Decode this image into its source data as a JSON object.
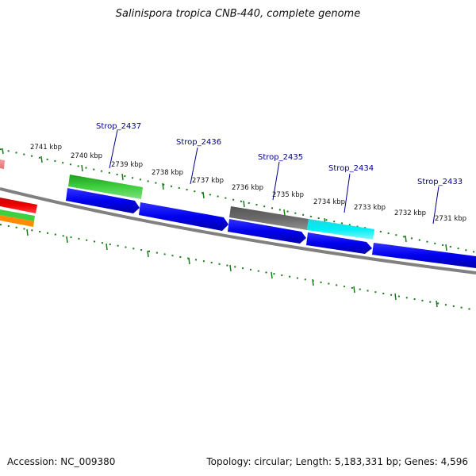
{
  "title": "Salinispora tropica CNB-440, complete genome",
  "accession": "Accession: NC_009380",
  "summary": "Topology: circular; Length: 5,183,331 bp; Genes: 4,596",
  "ticks": [
    "2741 kbp",
    "2740 kbp",
    "2739 kbp",
    "2738 kbp",
    "2737 kbp",
    "2736 kbp",
    "2735 kbp",
    "2734 kbp",
    "2733 kbp",
    "2732 kbp",
    "2731 kbp"
  ],
  "gene_labels": [
    "Strop_2437",
    "Strop_2436",
    "Strop_2435",
    "Strop_2434",
    "Strop_2433"
  ],
  "colors": {
    "blue_gene": "#0000ee",
    "green_gene": "#2fbf2f",
    "gray_gene": "#666666",
    "cyan_gene": "#00e5ee",
    "red_gene": "#ee0000",
    "orange_gene": "#ff8c00",
    "pink_gene": "#f08080",
    "backbone": "#808080",
    "tick_green": "#1a7a1a",
    "label_blue": "#00008b"
  }
}
